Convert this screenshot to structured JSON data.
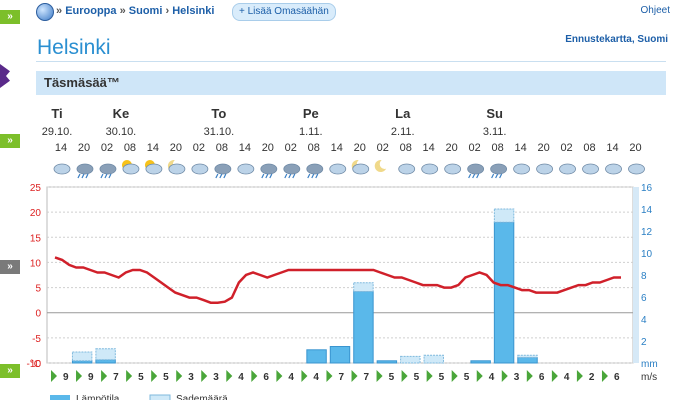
{
  "sidebar": {
    "buttons": [
      "»",
      "»",
      "»",
      "»"
    ]
  },
  "breadcrumb": {
    "items": [
      "Eurooppa",
      "Suomi",
      "Helsinki"
    ],
    "separators": [
      "»",
      "»",
      "›"
    ]
  },
  "add_button": "+ Lisää Omasäähän",
  "help_link": "Ohjeet",
  "title": "Helsinki",
  "map_link": "Ennustekartta, Suomi",
  "panel_title": "Täsmäsää™",
  "chart_data": {
    "type": "bar",
    "days": [
      {
        "label": "Ti",
        "date": "29.10."
      },
      {
        "label": "Ke",
        "date": "30.10."
      },
      {
        "label": "To",
        "date": "31.10."
      },
      {
        "label": "Pe",
        "date": "1.11."
      },
      {
        "label": "La",
        "date": "2.11."
      },
      {
        "label": "Su",
        "date": "3.11."
      }
    ],
    "hours": [
      "14",
      "20",
      "02",
      "08",
      "14",
      "20",
      "02",
      "08",
      "14",
      "20",
      "02",
      "08",
      "14",
      "20",
      "02",
      "08",
      "14",
      "20",
      "02",
      "08",
      "14",
      "20",
      "02",
      "08",
      "14",
      "20"
    ],
    "icons": [
      "partly-cloudy",
      "cloud-rain",
      "cloud-rain",
      "cloud-sun",
      "sun-cloud",
      "moon-cloud",
      "cloud",
      "cloud-rain",
      "cloud",
      "cloud-rain",
      "cloud-rain",
      "cloud-rain",
      "cloud",
      "moon-cloud",
      "moon",
      "cloud",
      "cloud",
      "cloud",
      "cloud-rain",
      "cloud-rain",
      "cloud",
      "cloud",
      "cloud",
      "cloud",
      "cloud",
      "cloud"
    ],
    "y_left": {
      "ticks": [
        25,
        20,
        15,
        10,
        5,
        0,
        -5,
        -10
      ],
      "last_label": "°C",
      "range": [
        -10,
        25
      ]
    },
    "y_right": {
      "ticks": [
        16,
        14,
        12,
        10,
        8,
        6,
        4,
        2
      ],
      "unit": "mm",
      "range": [
        0,
        16
      ]
    },
    "temperature": [
      11,
      10.5,
      9.5,
      9,
      9,
      8.5,
      8,
      8,
      7.5,
      7,
      8,
      8.5,
      8.5,
      8,
      7,
      6,
      5,
      4,
      3.5,
      3,
      3,
      2.5,
      2,
      2,
      2.2,
      3,
      6,
      7.5,
      8,
      7.5,
      7,
      7.5,
      8,
      8.5,
      8.5,
      8.5,
      8.5,
      8.5,
      8.5,
      8.5,
      8.5,
      8.5,
      8.5,
      8.5,
      8.5,
      8.5,
      8,
      7.5,
      7,
      7,
      6.5,
      6,
      5.5,
      5.5,
      5.5,
      5,
      5,
      5.5,
      7,
      7.5,
      8,
      7.5,
      6,
      5.5,
      5.5,
      5,
      4.5,
      4.5,
      4,
      4,
      4,
      4,
      4.5,
      5,
      5.5,
      5.5,
      6,
      6,
      6.5,
      7,
      7
    ],
    "precip": [
      0,
      0.2,
      0.3,
      0,
      0,
      0,
      0,
      0,
      0,
      0,
      0,
      1.2,
      1.5,
      6.5,
      0.2,
      0,
      0,
      0,
      0.2,
      12.8,
      0.5,
      0,
      0,
      0,
      0
    ],
    "precip_prob": [
      0,
      0.8,
      1.0,
      0,
      0,
      0,
      0,
      0,
      0,
      0,
      0,
      0,
      0,
      0.8,
      0,
      0.6,
      0.7,
      0,
      0,
      1.2,
      0.2,
      0,
      0,
      0,
      0
    ],
    "wind": [
      "9",
      "9",
      "7",
      "5",
      "5",
      "3",
      "3",
      "4",
      "6",
      "4",
      "4",
      "7",
      "7",
      "5",
      "5",
      "5",
      "5",
      "4",
      "3",
      "6",
      "4",
      "2",
      "6"
    ],
    "wind_unit": "m/s",
    "legend": [
      "Lämpötila",
      "Sademäärä"
    ]
  }
}
